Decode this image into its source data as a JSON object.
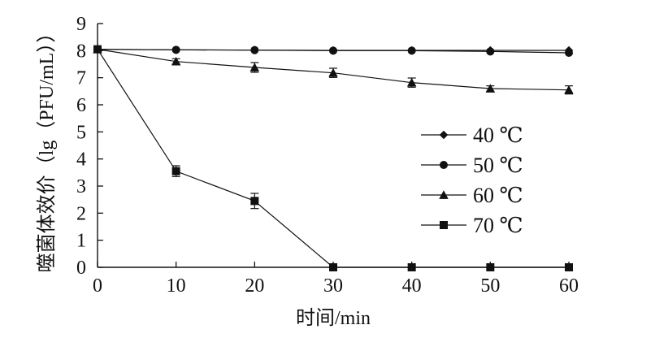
{
  "chart_data": {
    "type": "line",
    "title": "",
    "xlabel": "时间/min",
    "ylabel": "噬菌体效价（lg（PFU/mL））",
    "x": [
      0,
      10,
      20,
      30,
      40,
      50,
      60
    ],
    "xlim": [
      0,
      60
    ],
    "ylim": [
      0,
      9
    ],
    "xticks": [
      0,
      10,
      20,
      30,
      40,
      50,
      60
    ],
    "yticks": [
      0,
      1,
      2,
      3,
      4,
      5,
      6,
      7,
      8,
      9
    ],
    "grid": false,
    "legend_position": "center-right",
    "series": [
      {
        "name": "40 ℃",
        "marker": "diamond",
        "values": [
          8.05,
          8.03,
          8.02,
          8.01,
          8.01,
          8.01,
          8.01
        ],
        "errors": [
          0,
          0,
          0,
          0,
          0,
          0,
          0
        ]
      },
      {
        "name": "50 ℃",
        "marker": "circle",
        "values": [
          8.05,
          8.03,
          8.02,
          8.0,
          8.0,
          7.97,
          7.92
        ],
        "errors": [
          0,
          0,
          0,
          0,
          0,
          0,
          0
        ]
      },
      {
        "name": "60 ℃",
        "marker": "triangle",
        "values": [
          8.05,
          7.6,
          7.38,
          7.18,
          6.82,
          6.6,
          6.55
        ],
        "errors": [
          0,
          0.1,
          0.18,
          0.17,
          0.17,
          0.1,
          0.15
        ]
      },
      {
        "name": "70 ℃",
        "marker": "square",
        "values": [
          8.05,
          3.55,
          2.45,
          0,
          0,
          0,
          0
        ],
        "errors": [
          0,
          0.2,
          0.28,
          0,
          0,
          0,
          0
        ]
      }
    ]
  }
}
